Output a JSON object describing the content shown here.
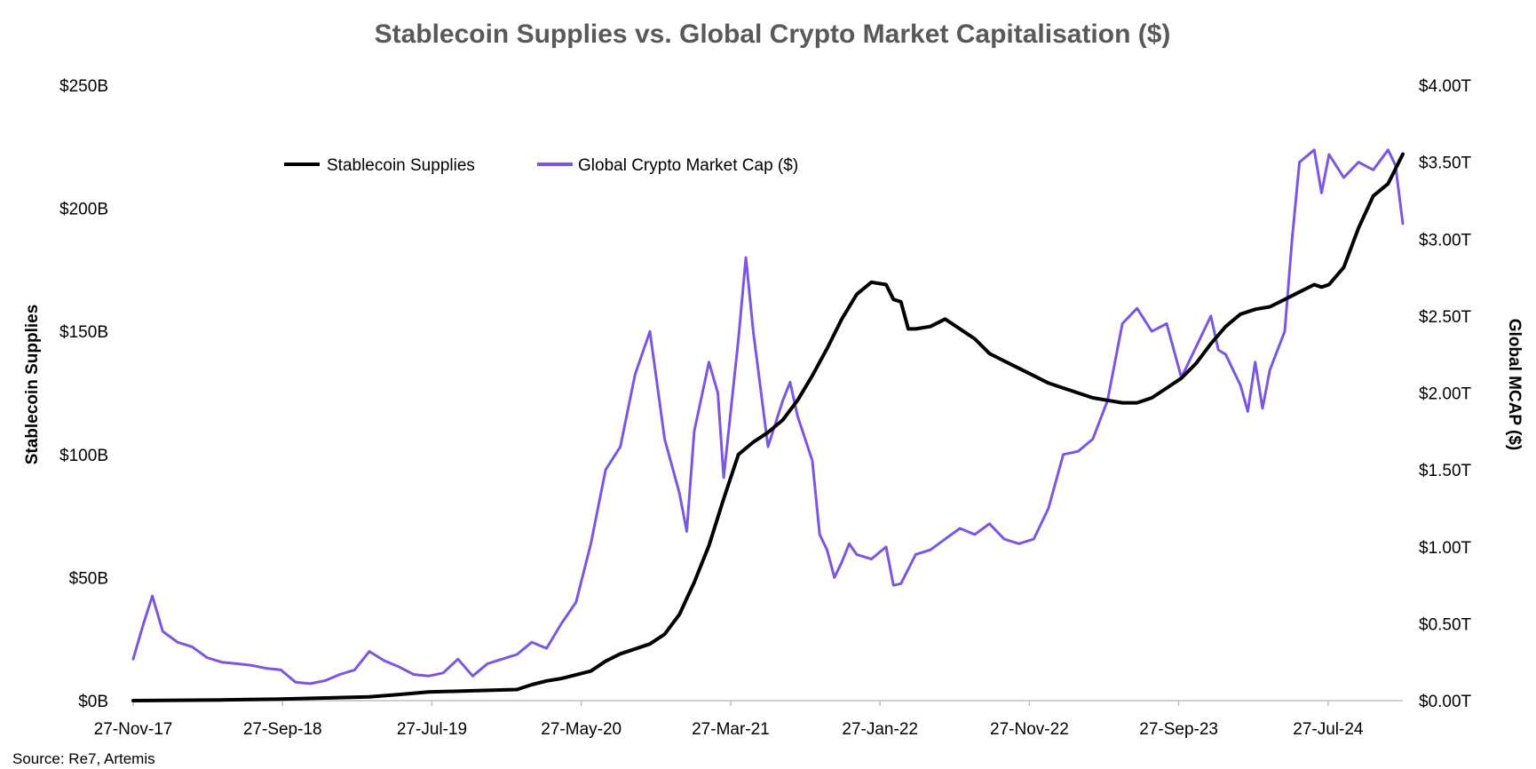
{
  "chart_data": {
    "type": "line",
    "title": "Stablecoin Supplies vs. Global Crypto Market Capitalisation ($)",
    "ylabel_left": "Stablecoin Supplies",
    "ylabel_right": "Global MCAP ($)",
    "source": "Source: Re7,  Artemis",
    "x_tick_labels": [
      "27-Nov-17",
      "27-Sep-18",
      "27-Jul-19",
      "27-May-20",
      "27-Mar-21",
      "27-Jan-22",
      "27-Nov-22",
      "27-Sep-23",
      "27-Jul-24"
    ],
    "y_left_tick_labels": [
      "$0B",
      "$50B",
      "$100B",
      "$150B",
      "$200B",
      "$250B"
    ],
    "y_left_ticks": [
      0,
      50,
      100,
      150,
      200,
      250
    ],
    "ylim_left": [
      0,
      250
    ],
    "y_right_tick_labels": [
      "$0.00T",
      "$0.50T",
      "$1.00T",
      "$1.50T",
      "$2.00T",
      "$2.50T",
      "$3.00T",
      "$3.50T",
      "$4.00T"
    ],
    "y_right_ticks": [
      0,
      0.5,
      1.0,
      1.5,
      2.0,
      2.5,
      3.0,
      3.5,
      4.0
    ],
    "ylim_right": [
      0,
      4
    ],
    "x_unit": "months since 27-Nov-17",
    "xlim": [
      0,
      86
    ],
    "legend_position": "top-left",
    "series": [
      {
        "name": "Stablecoin Supplies",
        "axis": "left",
        "unit": "$B",
        "color": "#000000",
        "x": [
          0,
          6,
          10,
          16,
          18,
          20,
          23,
          26,
          27,
          28,
          29,
          31,
          32,
          33,
          34,
          35,
          36,
          37,
          38,
          39,
          40,
          41,
          42,
          43,
          44,
          45,
          46,
          47,
          48,
          49,
          50,
          51,
          51.5,
          52,
          52.5,
          53,
          54,
          55,
          56,
          57,
          58,
          59,
          60,
          61,
          62,
          63,
          64,
          65,
          66,
          67,
          68,
          69,
          70,
          71,
          72,
          73,
          74,
          75,
          76,
          77,
          78,
          79,
          80,
          80.5,
          81,
          82,
          83,
          84,
          85,
          86
        ],
        "values": [
          0,
          0.3,
          0.6,
          1.5,
          2.5,
          3.5,
          4,
          4.5,
          6.5,
          8,
          9,
          12,
          16,
          19,
          21,
          23,
          27,
          35,
          48,
          63,
          82,
          100,
          105,
          109,
          114,
          122,
          132,
          143,
          155,
          165,
          170,
          169,
          163,
          162,
          151,
          151,
          152,
          155,
          151,
          147,
          141,
          138,
          135,
          132,
          129,
          127,
          125,
          123,
          122,
          121,
          121,
          123,
          127,
          131,
          137,
          145,
          152,
          157,
          159,
          160,
          163,
          166,
          169,
          168,
          169,
          176,
          192,
          205,
          210,
          222
        ]
      },
      {
        "name": "Global Crypto Market Cap ($)",
        "axis": "right",
        "unit": "$T",
        "color": "#7B56E2",
        "x": [
          0,
          0.7,
          1.3,
          2,
          3,
          4,
          5,
          6,
          7,
          8,
          9,
          10,
          11,
          12,
          13,
          14,
          15,
          16,
          17,
          18,
          19,
          20,
          21,
          22,
          23,
          24,
          25,
          26,
          27,
          28,
          29,
          30,
          31,
          32,
          33,
          34,
          35,
          36,
          37,
          37.5,
          38,
          39,
          39.6,
          40,
          41,
          41.5,
          42,
          43,
          44,
          44.5,
          45,
          46,
          46.5,
          47,
          47.5,
          48,
          48.5,
          49,
          50,
          51,
          51.5,
          52,
          53,
          54,
          55,
          56,
          57,
          58,
          59,
          60,
          61,
          62,
          63,
          64,
          65,
          66,
          67,
          68,
          69,
          70,
          71,
          72,
          73,
          73.5,
          74,
          75,
          75.5,
          76,
          76.5,
          77,
          78,
          78.5,
          79,
          80,
          80.5,
          81,
          82,
          83,
          84,
          85,
          85.5,
          86
        ],
        "values": [
          0.27,
          0.5,
          0.68,
          0.45,
          0.38,
          0.35,
          0.28,
          0.25,
          0.24,
          0.23,
          0.21,
          0.2,
          0.12,
          0.11,
          0.13,
          0.17,
          0.2,
          0.32,
          0.26,
          0.22,
          0.17,
          0.16,
          0.18,
          0.27,
          0.16,
          0.24,
          0.27,
          0.3,
          0.38,
          0.34,
          0.5,
          0.64,
          1.02,
          1.5,
          1.65,
          2.12,
          2.4,
          1.7,
          1.35,
          1.1,
          1.75,
          2.2,
          2.0,
          1.45,
          2.35,
          2.88,
          2.4,
          1.65,
          1.95,
          2.07,
          1.85,
          1.56,
          1.08,
          0.98,
          0.8,
          0.9,
          1.02,
          0.95,
          0.92,
          1.0,
          0.75,
          0.76,
          0.95,
          0.98,
          1.05,
          1.12,
          1.08,
          1.15,
          1.05,
          1.02,
          1.05,
          1.25,
          1.6,
          1.62,
          1.7,
          1.95,
          2.45,
          2.55,
          2.4,
          2.45,
          2.1,
          2.3,
          2.5,
          2.28,
          2.25,
          2.05,
          1.88,
          2.2,
          1.9,
          2.15,
          2.4,
          3.0,
          3.5,
          3.58,
          3.3,
          3.55,
          3.4,
          3.5,
          3.45,
          3.58,
          3.48,
          3.1
        ]
      }
    ]
  }
}
